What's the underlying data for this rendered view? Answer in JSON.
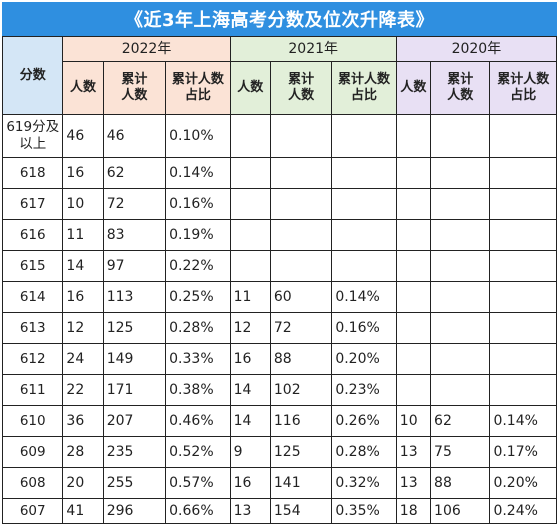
{
  "title": "《近3年上海高考分数及位次升降表》",
  "headers": {
    "score": "分数",
    "years": [
      "2022年",
      "2021年",
      "2020年"
    ],
    "count": "人数",
    "cumulative": "累计\n人数",
    "ratio": "累计人数\n占比"
  },
  "rows": [
    {
      "score": "619分及以上",
      "y2022": [
        "46",
        "46",
        "0.10%"
      ],
      "y2021": [
        "",
        "",
        ""
      ],
      "y2020": [
        "",
        "",
        ""
      ]
    },
    {
      "score": "618",
      "y2022": [
        "16",
        "62",
        "0.14%"
      ],
      "y2021": [
        "",
        "",
        ""
      ],
      "y2020": [
        "",
        "",
        ""
      ]
    },
    {
      "score": "617",
      "y2022": [
        "10",
        "72",
        "0.16%"
      ],
      "y2021": [
        "",
        "",
        ""
      ],
      "y2020": [
        "",
        "",
        ""
      ]
    },
    {
      "score": "616",
      "y2022": [
        "11",
        "83",
        "0.19%"
      ],
      "y2021": [
        "",
        "",
        ""
      ],
      "y2020": [
        "",
        "",
        ""
      ]
    },
    {
      "score": "615",
      "y2022": [
        "14",
        "97",
        "0.22%"
      ],
      "y2021": [
        "",
        "",
        ""
      ],
      "y2020": [
        "",
        "",
        ""
      ]
    },
    {
      "score": "614",
      "y2022": [
        "16",
        "113",
        "0.25%"
      ],
      "y2021": [
        "11",
        "60",
        "0.14%"
      ],
      "y2020": [
        "",
        "",
        ""
      ]
    },
    {
      "score": "613",
      "y2022": [
        "12",
        "125",
        "0.28%"
      ],
      "y2021": [
        "12",
        "72",
        "0.16%"
      ],
      "y2020": [
        "",
        "",
        ""
      ]
    },
    {
      "score": "612",
      "y2022": [
        "24",
        "149",
        "0.33%"
      ],
      "y2021": [
        "16",
        "88",
        "0.20%"
      ],
      "y2020": [
        "",
        "",
        ""
      ]
    },
    {
      "score": "611",
      "y2022": [
        "22",
        "171",
        "0.38%"
      ],
      "y2021": [
        "14",
        "102",
        "0.23%"
      ],
      "y2020": [
        "",
        "",
        ""
      ]
    },
    {
      "score": "610",
      "y2022": [
        "36",
        "207",
        "0.46%"
      ],
      "y2021": [
        "14",
        "116",
        "0.26%"
      ],
      "y2020": [
        "10",
        "62",
        "0.14%"
      ]
    },
    {
      "score": "609",
      "y2022": [
        "28",
        "235",
        "0.52%"
      ],
      "y2021": [
        "9",
        "125",
        "0.28%"
      ],
      "y2020": [
        "13",
        "75",
        "0.17%"
      ]
    },
    {
      "score": "608",
      "y2022": [
        "20",
        "255",
        "0.57%"
      ],
      "y2021": [
        "16",
        "141",
        "0.32%"
      ],
      "y2020": [
        "13",
        "88",
        "0.20%"
      ]
    },
    {
      "score": "607",
      "y2022": [
        "41",
        "296",
        "0.66%"
      ],
      "y2021": [
        "13",
        "154",
        "0.35%"
      ],
      "y2020": [
        "18",
        "106",
        "0.24%"
      ]
    }
  ]
}
